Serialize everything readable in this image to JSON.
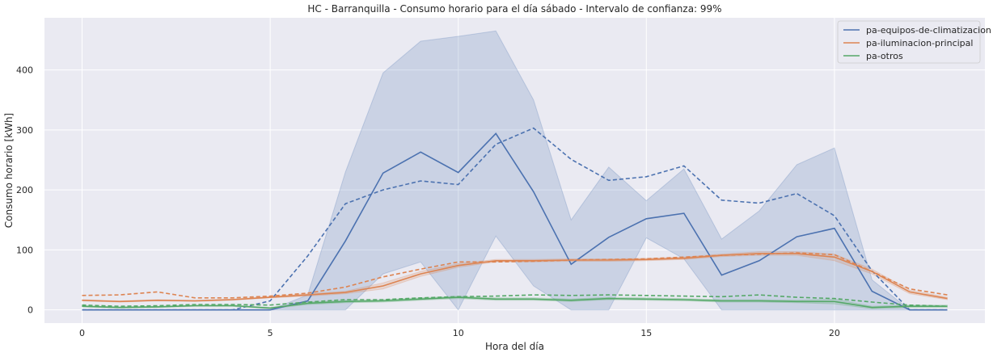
{
  "chart_data": {
    "type": "line",
    "title": "HC - Barranquilla - Consumo horario para el día sábado - Intervalo de confianza: 99%",
    "xlabel": "Hora del día",
    "ylabel": "Consumo horario [kWh]",
    "xlim": [
      -1,
      24
    ],
    "ylim": [
      -22,
      487
    ],
    "x": [
      0,
      1,
      2,
      3,
      4,
      5,
      6,
      7,
      8,
      9,
      10,
      11,
      12,
      13,
      14,
      15,
      16,
      17,
      18,
      19,
      20,
      21,
      22,
      23
    ],
    "xticks": [
      0,
      5,
      10,
      15,
      20
    ],
    "yticks": [
      0,
      100,
      200,
      300,
      400
    ],
    "grid": true,
    "legend_position": "top-right",
    "background": "#eaeaf2",
    "series": [
      {
        "name": "pa-equipos-de-climatizacion",
        "color": "#4c72b0",
        "values": [
          0,
          0,
          0,
          0,
          0,
          0,
          15,
          115,
          228,
          263,
          229,
          294,
          197,
          76,
          121,
          152,
          161,
          58,
          82,
          122,
          136,
          31,
          0,
          0
        ],
        "ci_low": [
          0,
          0,
          0,
          0,
          0,
          0,
          0,
          0,
          60,
          80,
          0,
          123,
          40,
          0,
          0,
          120,
          85,
          0,
          0,
          0,
          0,
          0,
          0,
          0
        ],
        "ci_high": [
          0,
          0,
          0,
          0,
          0,
          0,
          25,
          230,
          395,
          448,
          456,
          465,
          350,
          150,
          238,
          182,
          235,
          118,
          165,
          242,
          270,
          50,
          0,
          0
        ],
        "dashed": [
          0,
          0,
          0,
          0,
          0,
          15,
          90,
          177,
          200,
          215,
          209,
          276,
          303,
          251,
          216,
          222,
          240,
          183,
          178,
          194,
          157,
          65,
          0,
          0
        ]
      },
      {
        "name": "pa-iluminacion-principal",
        "color": "#dd8452",
        "values": [
          16,
          14,
          16,
          15,
          17,
          21,
          25,
          29,
          40,
          60,
          74,
          82,
          82,
          83,
          83,
          84,
          86,
          91,
          94,
          94,
          88,
          64,
          30,
          19
        ],
        "ci_low": [
          15,
          13,
          15,
          14,
          16,
          20,
          23,
          27,
          35,
          56,
          71,
          80,
          80,
          81,
          81,
          82,
          84,
          89,
          91,
          91,
          82,
          60,
          27,
          17
        ],
        "ci_high": [
          17,
          15,
          17,
          16,
          18,
          22,
          27,
          31,
          45,
          64,
          77,
          84,
          84,
          85,
          85,
          86,
          88,
          93,
          97,
          97,
          93,
          68,
          33,
          21
        ],
        "dashed": [
          24,
          25,
          30,
          20,
          20,
          23,
          28,
          38,
          55,
          68,
          80,
          80,
          81,
          83,
          84,
          85,
          88,
          91,
          93,
          95,
          92,
          64,
          35,
          25
        ]
      },
      {
        "name": "pa-otros",
        "color": "#55a868",
        "values": [
          6,
          4,
          5,
          7,
          7,
          3,
          11,
          14,
          15,
          18,
          21,
          18,
          18,
          16,
          19,
          18,
          17,
          15,
          15,
          14,
          14,
          4,
          6,
          6
        ],
        "ci_low": [
          5,
          3,
          4,
          6,
          6,
          2,
          9,
          12,
          13,
          16,
          19,
          16,
          16,
          14,
          17,
          16,
          15,
          13,
          13,
          12,
          10,
          2,
          4,
          4
        ],
        "ci_high": [
          7,
          5,
          6,
          8,
          8,
          4,
          13,
          16,
          17,
          20,
          23,
          20,
          20,
          18,
          21,
          20,
          19,
          17,
          17,
          16,
          18,
          6,
          8,
          8
        ],
        "dashed": [
          8,
          6,
          7,
          9,
          9,
          8,
          13,
          17,
          17,
          20,
          22,
          23,
          25,
          24,
          25,
          24,
          23,
          22,
          25,
          21,
          19,
          13,
          8,
          6
        ]
      }
    ]
  }
}
